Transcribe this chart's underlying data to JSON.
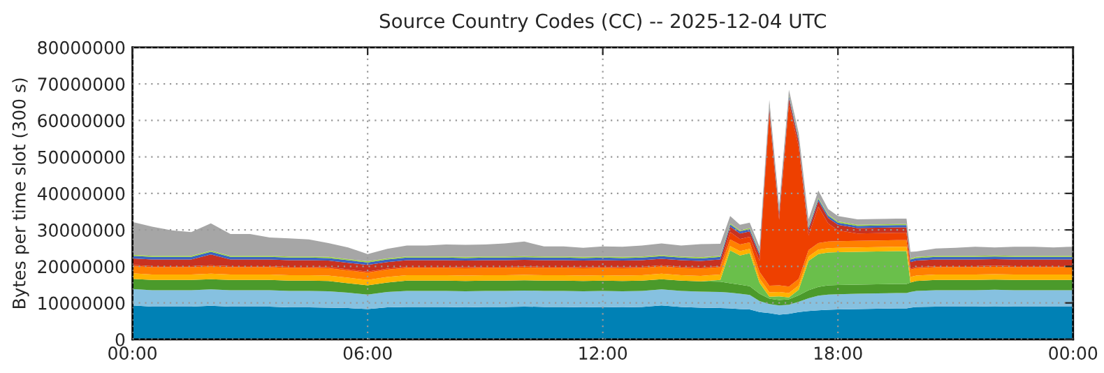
{
  "chart_data": {
    "type": "area",
    "stacked": true,
    "title": "Source Country Codes (CC) -- 2025-12-04 UTC",
    "ylabel": "Bytes per time slot (300 s)",
    "x": [
      0,
      0.5,
      1,
      1.5,
      2,
      2.5,
      3,
      3.5,
      4,
      4.5,
      5,
      5.5,
      6,
      6.5,
      7,
      7.5,
      8,
      8.5,
      9,
      9.5,
      10,
      10.5,
      11,
      11.5,
      12,
      12.5,
      13,
      13.5,
      14,
      14.5,
      15,
      15.25,
      15.5,
      15.75,
      16,
      16.25,
      16.5,
      16.75,
      17,
      17.25,
      17.5,
      17.75,
      18,
      18.5,
      19,
      19.5,
      19.75,
      19.85,
      20,
      20.5,
      21,
      21.5,
      22,
      22.5,
      23,
      23.5,
      24
    ],
    "xlim": [
      0,
      24
    ],
    "xticks": [
      {
        "value": 0,
        "label": "00:00"
      },
      {
        "value": 6,
        "label": "06:00"
      },
      {
        "value": 12,
        "label": "12:00"
      },
      {
        "value": 18,
        "label": "18:00"
      },
      {
        "value": 24,
        "label": "00:00"
      }
    ],
    "ylim": [
      0,
      80000000
    ],
    "yticks": [
      0,
      10000000,
      20000000,
      30000000,
      40000000,
      50000000,
      60000000,
      70000000,
      80000000
    ],
    "grid": true,
    "series": [
      {
        "color": "#0081b5",
        "values": [
          9300000.0,
          9000000.0,
          9000000.0,
          9000000.0,
          9200000.0,
          9000000.0,
          9000000.0,
          9000000.0,
          8800000.0,
          8800000.0,
          8700000.0,
          8600000.0,
          8300000.0,
          8800000.0,
          8900000.0,
          8900000.0,
          8900000.0,
          8800000.0,
          8900000.0,
          8900000.0,
          9000000.0,
          8900000.0,
          8900000.0,
          8800000.0,
          8900000.0,
          8800000.0,
          8900000.0,
          9300000.0,
          8900000.0,
          8700000.0,
          8600000.0,
          8500000.0,
          8300000.0,
          8200000.0,
          7500000.0,
          7200000.0,
          6800000.0,
          7000000.0,
          7500000.0,
          7800000.0,
          8000000.0,
          8100000.0,
          8200000.0,
          8300000.0,
          8400000.0,
          8500000.0,
          8500000.0,
          8700000.0,
          8900000.0,
          9000000.0,
          9000000.0,
          9000000.0,
          9100000.0,
          9000000.0,
          9000000.0,
          9000000.0,
          9000000.0
        ]
      },
      {
        "color": "#86c1e0",
        "values": [
          4500000.0,
          4500000.0,
          4500000.0,
          4500000.0,
          4500000.0,
          4500000.0,
          4500000.0,
          4500000.0,
          4500000.0,
          4500000.0,
          4500000.0,
          4200000.0,
          4000000.0,
          4200000.0,
          4400000.0,
          4400000.0,
          4400000.0,
          4400000.0,
          4400000.0,
          4400000.0,
          4400000.0,
          4400000.0,
          4400000.0,
          4400000.0,
          4400000.0,
          4400000.0,
          4400000.0,
          4400000.0,
          4400000.0,
          4400000.0,
          4400000.0,
          4300000.0,
          4200000.0,
          4000000.0,
          3000000.0,
          2500000.0,
          2500000.0,
          2500000.0,
          2800000.0,
          3500000.0,
          4000000.0,
          4200000.0,
          4200000.0,
          4200000.0,
          4200000.0,
          4200000.0,
          4200000.0,
          4300000.0,
          4400000.0,
          4500000.0,
          4500000.0,
          4500000.0,
          4500000.0,
          4500000.0,
          4500000.0,
          4500000.0,
          4500000.0
        ]
      },
      {
        "color": "#4b9a2b",
        "values": [
          2800000.0,
          2800000.0,
          2800000.0,
          2800000.0,
          2800000.0,
          2800000.0,
          2800000.0,
          2800000.0,
          2800000.0,
          2800000.0,
          2800000.0,
          2600000.0,
          2500000.0,
          2600000.0,
          2800000.0,
          2800000.0,
          2800000.0,
          2800000.0,
          2800000.0,
          2800000.0,
          2800000.0,
          2800000.0,
          2800000.0,
          2800000.0,
          2800000.0,
          2800000.0,
          2800000.0,
          2800000.0,
          2800000.0,
          2800000.0,
          2800000.0,
          2600000.0,
          2500000.0,
          2400000.0,
          2000000.0,
          1500000.0,
          1500000.0,
          1500000.0,
          1800000.0,
          2200000.0,
          2400000.0,
          2500000.0,
          2500000.0,
          2500000.0,
          2500000.0,
          2500000.0,
          2500000.0,
          2600000.0,
          2700000.0,
          2800000.0,
          2800000.0,
          2800000.0,
          2800000.0,
          2800000.0,
          2800000.0,
          2800000.0,
          2800000.0
        ]
      },
      {
        "color": "#6abf4b",
        "values": [
          0,
          0,
          0,
          0,
          0,
          0,
          0,
          0,
          0,
          0,
          0,
          0,
          0,
          0,
          0,
          0,
          0,
          0,
          0,
          0,
          0,
          0,
          0,
          0,
          0,
          0,
          0,
          0,
          0,
          0,
          500000.0,
          9000000.0,
          8000000.0,
          9000000.0,
          3000000.0,
          500000.0,
          1000000.0,
          500000.0,
          1500000.0,
          8000000.0,
          9000000.0,
          9000000.0,
          9000000.0,
          9000000.0,
          9000000.0,
          9000000.0,
          9000000.0,
          0,
          0,
          0,
          0,
          0,
          0,
          0,
          0,
          0,
          0
        ]
      },
      {
        "color": "#ffb300",
        "values": [
          1500000.0,
          1500000.0,
          1500000.0,
          1500000.0,
          1500000.0,
          1500000.0,
          1500000.0,
          1500000.0,
          1500000.0,
          1500000.0,
          1500000.0,
          1500000.0,
          1500000.0,
          1500000.0,
          1500000.0,
          1500000.0,
          1500000.0,
          1500000.0,
          1500000.0,
          1500000.0,
          1500000.0,
          1500000.0,
          1500000.0,
          1500000.0,
          1500000.0,
          1500000.0,
          1500000.0,
          1500000.0,
          1500000.0,
          1500000.0,
          1500000.0,
          1200000.0,
          1200000.0,
          1200000.0,
          1200000.0,
          1200000.0,
          1200000.0,
          1200000.0,
          1200000.0,
          1200000.0,
          1200000.0,
          1200000.0,
          1200000.0,
          1200000.0,
          1200000.0,
          1200000.0,
          1200000.0,
          1500000.0,
          1500000.0,
          1500000.0,
          1500000.0,
          1500000.0,
          1500000.0,
          1500000.0,
          1500000.0,
          1500000.0,
          1500000.0
        ]
      },
      {
        "color": "#ff8000",
        "values": [
          2000000.0,
          2000000.0,
          2000000.0,
          2000000.0,
          2000000.0,
          2000000.0,
          2000000.0,
          2000000.0,
          2000000.0,
          2000000.0,
          2000000.0,
          2000000.0,
          2000000.0,
          2000000.0,
          2000000.0,
          2000000.0,
          2000000.0,
          2000000.0,
          2000000.0,
          2000000.0,
          2000000.0,
          2000000.0,
          2000000.0,
          2000000.0,
          2000000.0,
          2000000.0,
          2000000.0,
          2000000.0,
          2000000.0,
          2000000.0,
          2000000.0,
          1800000.0,
          1800000.0,
          1800000.0,
          1800000.0,
          1800000.0,
          1800000.0,
          1800000.0,
          1800000.0,
          1800000.0,
          1800000.0,
          1800000.0,
          1800000.0,
          1800000.0,
          1800000.0,
          1800000.0,
          1800000.0,
          2000000.0,
          2000000.0,
          2000000.0,
          2000000.0,
          2000000.0,
          2000000.0,
          2000000.0,
          2000000.0,
          2000000.0,
          2000000.0
        ]
      },
      {
        "color": "#ee4000",
        "values": [
          300000.0,
          300000.0,
          300000.0,
          300000.0,
          300000.0,
          300000.0,
          300000.0,
          300000.0,
          300000.0,
          300000.0,
          300000.0,
          300000.0,
          300000.0,
          300000.0,
          300000.0,
          300000.0,
          300000.0,
          300000.0,
          300000.0,
          300000.0,
          300000.0,
          300000.0,
          300000.0,
          300000.0,
          300000.0,
          300000.0,
          300000.0,
          300000.0,
          300000.0,
          300000.0,
          300000.0,
          2000000.0,
          1500000.0,
          1500000.0,
          3000000.0,
          47000000.0,
          18000000.0,
          50000000.0,
          36000000.0,
          4000000.0,
          10000000.0,
          5000000.0,
          3000000.0,
          2000000.0,
          2000000.0,
          2000000.0,
          2000000.0,
          300000.0,
          300000.0,
          300000.0,
          300000.0,
          300000.0,
          300000.0,
          300000.0,
          300000.0,
          300000.0,
          300000.0
        ]
      },
      {
        "color": "#c83220",
        "values": [
          1800000.0,
          1800000.0,
          1800000.0,
          1800000.0,
          3000000.0,
          1800000.0,
          1800000.0,
          1800000.0,
          1800000.0,
          1800000.0,
          1800000.0,
          1800000.0,
          1800000.0,
          1800000.0,
          1800000.0,
          1800000.0,
          1800000.0,
          1800000.0,
          1800000.0,
          1800000.0,
          1800000.0,
          1800000.0,
          1800000.0,
          1800000.0,
          1800000.0,
          1800000.0,
          1800000.0,
          1800000.0,
          1800000.0,
          1800000.0,
          1800000.0,
          1500000.0,
          1500000.0,
          1500000.0,
          1500000.0,
          1500000.0,
          1500000.0,
          1500000.0,
          1500000.0,
          1500000.0,
          1500000.0,
          1500000.0,
          1500000.0,
          1500000.0,
          1500000.0,
          1500000.0,
          1500000.0,
          1800000.0,
          1800000.0,
          1800000.0,
          1800000.0,
          1800000.0,
          1800000.0,
          1800000.0,
          1800000.0,
          1800000.0,
          1800000.0
        ]
      },
      {
        "color": "#3a63c0",
        "values": [
          700000.0,
          700000.0,
          700000.0,
          700000.0,
          700000.0,
          700000.0,
          700000.0,
          700000.0,
          700000.0,
          700000.0,
          700000.0,
          700000.0,
          700000.0,
          700000.0,
          700000.0,
          700000.0,
          700000.0,
          700000.0,
          700000.0,
          700000.0,
          700000.0,
          700000.0,
          700000.0,
          700000.0,
          700000.0,
          700000.0,
          700000.0,
          700000.0,
          700000.0,
          700000.0,
          700000.0,
          600000.0,
          600000.0,
          600000.0,
          600000.0,
          600000.0,
          600000.0,
          600000.0,
          600000.0,
          600000.0,
          600000.0,
          600000.0,
          600000.0,
          600000.0,
          600000.0,
          600000.0,
          600000.0,
          700000.0,
          700000.0,
          700000.0,
          700000.0,
          700000.0,
          700000.0,
          700000.0,
          700000.0,
          700000.0,
          700000.0
        ]
      },
      {
        "color": "#9bd33c",
        "values": [
          300000.0,
          300000.0,
          300000.0,
          300000.0,
          300000.0,
          300000.0,
          300000.0,
          300000.0,
          300000.0,
          300000.0,
          300000.0,
          300000.0,
          300000.0,
          300000.0,
          300000.0,
          300000.0,
          300000.0,
          300000.0,
          300000.0,
          300000.0,
          300000.0,
          300000.0,
          300000.0,
          300000.0,
          300000.0,
          300000.0,
          300000.0,
          300000.0,
          300000.0,
          300000.0,
          300000.0,
          300000.0,
          300000.0,
          300000.0,
          300000.0,
          300000.0,
          300000.0,
          300000.0,
          300000.0,
          300000.0,
          300000.0,
          300000.0,
          300000.0,
          300000.0,
          300000.0,
          300000.0,
          300000.0,
          300000.0,
          300000.0,
          300000.0,
          300000.0,
          300000.0,
          300000.0,
          300000.0,
          300000.0,
          300000.0,
          300000.0
        ]
      },
      {
        "color": "#a6a6a6",
        "values": [
          9000000.0,
          8000000.0,
          7000000.0,
          6500000.0,
          7500000.0,
          6000000.0,
          6000000.0,
          5000000.0,
          5000000.0,
          4700000.0,
          3800000.0,
          3200000.0,
          2000000.0,
          2600000.0,
          3000000.0,
          3000000.0,
          3300000.0,
          3300000.0,
          3300000.0,
          3600000.0,
          4000000.0,
          2800000.0,
          2800000.0,
          2500000.0,
          2800000.0,
          2800000.0,
          3000000.0,
          3200000.0,
          3000000.0,
          3600000.0,
          3300000.0,
          2000000.0,
          1500000.0,
          1500000.0,
          1500000.0,
          1500000.0,
          1500000.0,
          1500000.0,
          1500000.0,
          2000000.0,
          2000000.0,
          1500000.0,
          1500000.0,
          1500000.0,
          1500000.0,
          1500000.0,
          1500000.0,
          1800000.0,
          1500000.0,
          2000000.0,
          2200000.0,
          2500000.0,
          2200000.0,
          2500000.0,
          2500000.0,
          2300000.0,
          2500000.0
        ]
      }
    ]
  }
}
